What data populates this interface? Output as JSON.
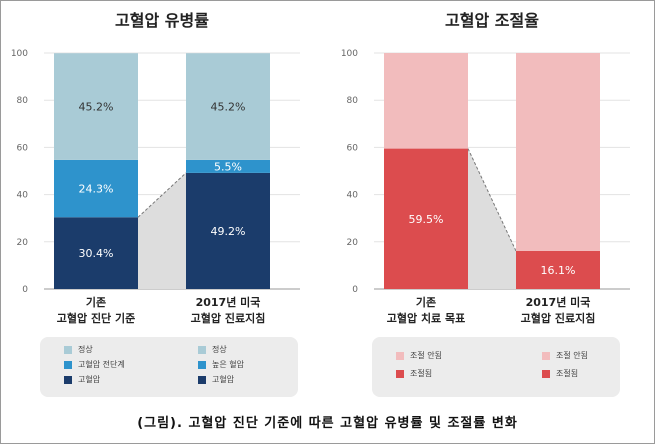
{
  "caption": "(그림). 고혈압 진단 기준에 따른 고혈압 유병률 및 조절률 변화",
  "colors": {
    "normal": "#a9cbd6",
    "prehypertension": "#2e93cc",
    "hypertension": "#1b3c6b",
    "uncontrolled": "#f2bcbd",
    "controlled": "#dc4c4e",
    "connector": "#dddddd"
  },
  "chart_data": [
    {
      "type": "bar",
      "stacked": true,
      "title": "고혈압 유병률",
      "ylim": [
        0,
        100
      ],
      "yticks": [
        "0",
        "20",
        "40",
        "60",
        "80",
        "100"
      ],
      "grid": true,
      "categories": [
        {
          "line1": "기존",
          "line2": "고혈압 진단 기준"
        },
        {
          "line1": "2017년 미국",
          "line2": "고혈압 진료지침"
        }
      ],
      "bars": [
        [
          {
            "value": 30.4,
            "label": "30.4%",
            "color": "#1b3c6b"
          },
          {
            "value": 24.3,
            "label": "24.3%",
            "color": "#2e93cc"
          },
          {
            "value": 45.2,
            "label": "45.2%",
            "color": "#a9cbd6"
          }
        ],
        [
          {
            "value": 49.2,
            "label": "49.2%",
            "color": "#1b3c6b"
          },
          {
            "value": 5.5,
            "label": "5.5%",
            "color": "#2e93cc"
          },
          {
            "value": 45.2,
            "label": "45.2%",
            "color": "#a9cbd6"
          }
        ]
      ],
      "connector": {
        "from": 30.4,
        "to": 49.2
      },
      "legend": [
        [
          {
            "label": "정상",
            "color": "#a9cbd6"
          },
          {
            "label": "고혈압 전단계",
            "color": "#2e93cc"
          },
          {
            "label": "고혈압",
            "color": "#1b3c6b"
          }
        ],
        [
          {
            "label": "정상",
            "color": "#a9cbd6"
          },
          {
            "label": "높은 혈압",
            "color": "#2e93cc"
          },
          {
            "label": "고혈압",
            "color": "#1b3c6b"
          }
        ]
      ]
    },
    {
      "type": "bar",
      "stacked": true,
      "title": "고혈압 조절율",
      "ylim": [
        0,
        100
      ],
      "yticks": [
        "0",
        "20",
        "40",
        "60",
        "80",
        "100"
      ],
      "grid": true,
      "categories": [
        {
          "line1": "기존",
          "line2": "고혈압 치료 목표"
        },
        {
          "line1": "2017년 미국",
          "line2": "고혈압 진료지침"
        }
      ],
      "bars": [
        [
          {
            "value": 59.5,
            "label": "59.5%",
            "color": "#dc4c4e"
          },
          {
            "value": 40.5,
            "label": "",
            "color": "#f2bcbd"
          }
        ],
        [
          {
            "value": 16.1,
            "label": "16.1%",
            "color": "#dc4c4e"
          },
          {
            "value": 83.9,
            "label": "",
            "color": "#f2bcbd"
          }
        ]
      ],
      "connector": {
        "from": 59.5,
        "to": 16.1
      },
      "legend": [
        [
          {
            "label": "조절 안됨",
            "color": "#f2bcbd"
          },
          {
            "label": "조절됨",
            "color": "#dc4c4e"
          }
        ],
        [
          {
            "label": "조절 안됨",
            "color": "#f2bcbd"
          },
          {
            "label": "조절됨",
            "color": "#dc4c4e"
          }
        ]
      ]
    }
  ]
}
